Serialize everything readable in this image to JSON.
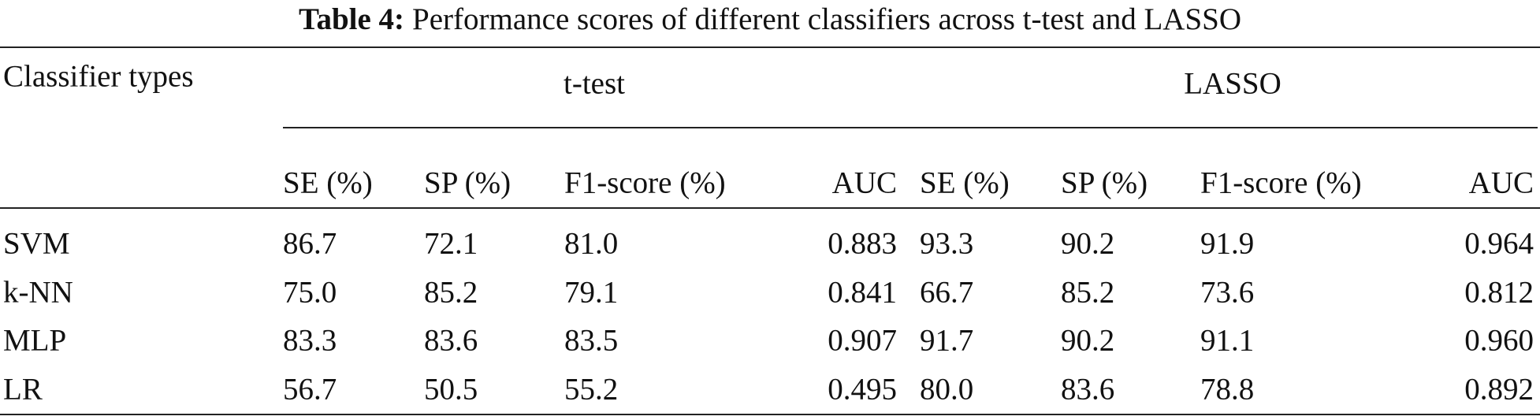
{
  "caption": {
    "label": "Table 4:",
    "text": "Performance scores of different classifiers across t-test and LASSO"
  },
  "table": {
    "stub_header": "Classifier types",
    "groups": [
      "t-test",
      "LASSO"
    ],
    "columns": [
      "SE (%)",
      "SP (%)",
      "F1-score (%)",
      "AUC",
      "SE (%)",
      "SP (%)",
      "F1-score (%)",
      "AUC"
    ],
    "rows": [
      [
        "SVM",
        "86.7",
        "72.1",
        "81.0",
        "0.883",
        "93.3",
        "90.2",
        "91.9",
        "0.964"
      ],
      [
        "k-NN",
        "75.0",
        "85.2",
        "79.1",
        "0.841",
        "66.7",
        "85.2",
        "73.6",
        "0.812"
      ],
      [
        "MLP",
        "83.3",
        "83.6",
        "83.5",
        "0.907",
        "91.7",
        "90.2",
        "91.1",
        "0.960"
      ],
      [
        "LR",
        "56.7",
        "50.5",
        "55.2",
        "0.495",
        "80.0",
        "83.6",
        "78.8",
        "0.892"
      ]
    ]
  }
}
